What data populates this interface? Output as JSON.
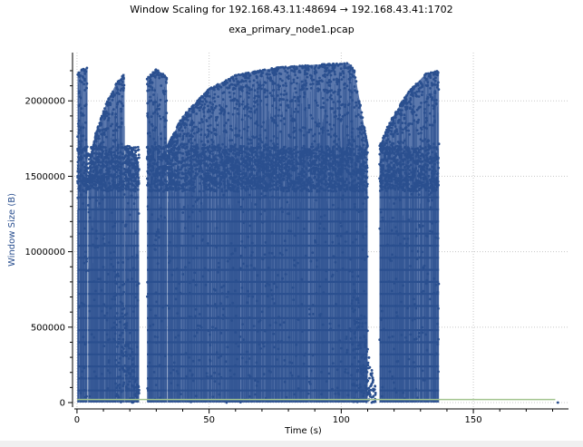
{
  "header": {
    "title": "Window Scaling for 192.168.43.11:48694 → 192.168.43.41:1702",
    "subtitle": "exa_primary_node1.pcap"
  },
  "colors": {
    "series": "#2a4f8f",
    "series_fill": "#5b78ad",
    "bytes_out": "#a3c48f",
    "grid": "#c8c8c8",
    "axis_title": "#2a4f8f"
  },
  "chart_data": {
    "type": "scatter",
    "title": "Window Scaling for 192.168.43.11:48694 → 192.168.43.41:1702",
    "subtitle": "exa_primary_node1.pcap",
    "xlabel": "Time (s)",
    "ylabel": "Window Size (B)",
    "xlim": [
      -1,
      186
    ],
    "ylim": [
      -30000,
      2320000
    ],
    "x_ticks": [
      0,
      50,
      100,
      150
    ],
    "y_ticks": [
      0,
      500000,
      1000000,
      1500000,
      2000000
    ],
    "y_tick_labels": [
      "0",
      "500000",
      "1000000",
      "1500000",
      "2000000"
    ],
    "grid": true,
    "legend": "none",
    "segments": [
      {
        "start": 0.2,
        "end": 4.0,
        "peak": [
          [
            0.2,
            2180000
          ],
          [
            2,
            2210000
          ],
          [
            4.0,
            2220000
          ]
        ]
      },
      {
        "start": 4.2,
        "end": 18.0,
        "peak": [
          [
            4.2,
            1500000
          ],
          [
            7,
            1780000
          ],
          [
            11,
            1980000
          ],
          [
            15,
            2120000
          ],
          [
            18,
            2180000
          ]
        ]
      },
      {
        "start": 18.2,
        "end": 23.5,
        "peak": [
          [
            18.2,
            1680000
          ],
          [
            21,
            1640000
          ],
          [
            23.5,
            1580000
          ]
        ]
      },
      {
        "start": 26.5,
        "end": 34.0,
        "peak": [
          [
            26.5,
            2150000
          ],
          [
            30,
            2210000
          ],
          [
            34,
            2160000
          ]
        ]
      },
      {
        "start": 34.2,
        "end": 110.0,
        "peak": [
          [
            34.2,
            1700000
          ],
          [
            40,
            1900000
          ],
          [
            50,
            2080000
          ],
          [
            60,
            2170000
          ],
          [
            75,
            2220000
          ],
          [
            90,
            2240000
          ],
          [
            103,
            2250000
          ],
          [
            105,
            2200000
          ],
          [
            110,
            1700000
          ]
        ]
      },
      {
        "start": 114.5,
        "end": 137.0,
        "peak": [
          [
            114.5,
            1700000
          ],
          [
            118,
            1850000
          ],
          [
            125,
            2050000
          ],
          [
            132,
            2180000
          ],
          [
            137,
            2200000
          ]
        ]
      }
    ],
    "dense_band": [
      1400000,
      1700000
    ],
    "levels": [
      15000,
      80000,
      160000,
      240000,
      320000,
      400000,
      480000,
      560000,
      640000,
      720000,
      800000,
      880000,
      960000,
      1040000,
      1120000,
      1200000,
      1280000,
      1360000
    ],
    "tails": [
      {
        "x_range": [
          14,
          23.5
        ],
        "y_range": [
          0,
          1000000
        ]
      },
      {
        "x_range": [
          104,
          113
        ],
        "y_range": [
          0,
          900000
        ]
      }
    ],
    "outlier_points": [
      [
        182,
        0
      ]
    ],
    "bytes_out_line": {
      "x_range": [
        0,
        181
      ],
      "y": 20000
    }
  }
}
